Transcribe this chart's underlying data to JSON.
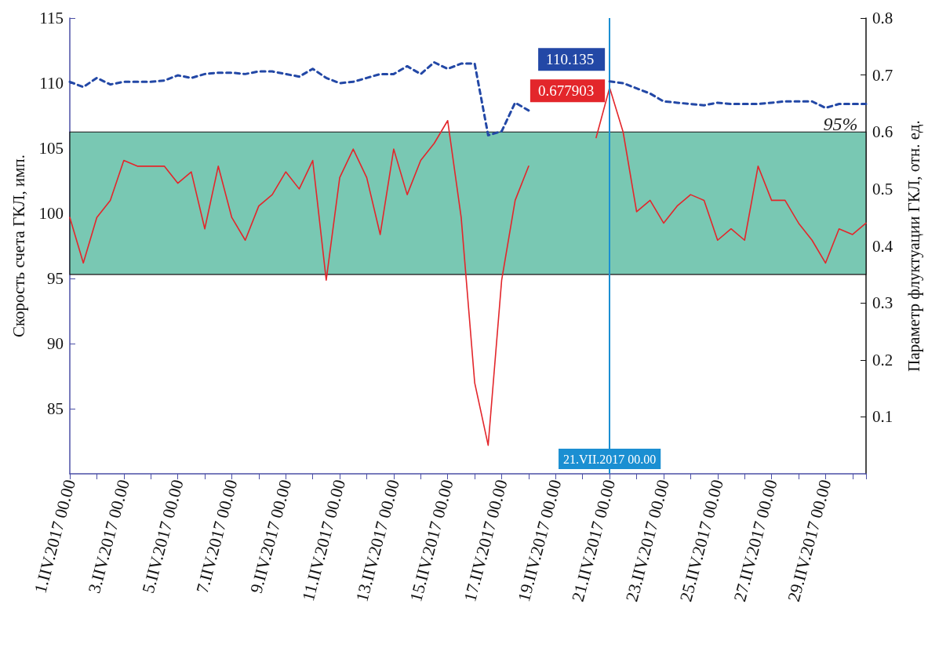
{
  "chart_data": {
    "type": "line",
    "ylabel": "Скорость счета ГКЛ, имп.",
    "y2label": "Параметр флуктуации ГКЛ, отн. ед.",
    "categories": [
      "1.IIV.2017 00.00",
      null,
      null,
      null,
      "3.IIV.2017 00.00",
      null,
      null,
      null,
      "5.IIV.2017 00.00",
      null,
      null,
      null,
      "7.IIV.2017 00.00",
      null,
      null,
      null,
      "9.IIV.2017 00.00",
      null,
      null,
      null,
      "11.IIV.2017 00.00",
      null,
      null,
      null,
      "13.IIV.2017 00.00",
      null,
      null,
      null,
      "15.IIV.2017 00.00",
      null,
      null,
      null,
      "17.IIV.2017 00.00",
      null,
      null,
      null,
      "19.IIV.2017 00.00",
      null,
      null,
      null,
      "21.IIV.2017 00.00",
      null,
      null,
      null,
      "23.IIV.2017 00.00",
      null,
      null,
      null,
      "25.IIV.2017 00.00",
      null,
      null,
      null,
      "27.IIV.2017 00.00",
      null,
      null,
      null,
      "29.IIV.2017 00.00",
      null,
      null,
      null
    ],
    "series": [
      {
        "color": "#2348a6",
        "line_style": "dashed",
        "values": [
          110.1,
          109.7,
          110.4,
          109.9,
          110.1,
          110.1,
          110.1,
          110.2,
          110.6,
          110.4,
          110.7,
          110.8,
          110.8,
          110.7,
          110.9,
          110.9,
          110.7,
          110.5,
          111.1,
          110.4,
          110.0,
          110.1,
          110.4,
          110.7,
          110.7,
          111.3,
          110.7,
          111.6,
          111.1,
          111.5,
          111.5,
          106.0,
          106.3,
          108.5,
          107.9,
          null,
          null,
          null,
          null,
          null,
          110.135,
          110.0,
          109.6,
          109.2,
          108.6,
          108.5,
          108.4,
          108.3,
          108.5,
          108.4,
          108.4,
          108.4,
          108.5,
          108.6,
          108.6,
          108.6,
          108.1,
          108.4,
          108.4,
          108.4
        ],
        "value_labels": [
          null,
          null,
          null,
          null,
          null,
          null,
          null,
          null,
          null,
          null,
          null,
          null,
          null,
          null,
          null,
          null,
          null,
          null,
          null,
          null,
          null,
          null,
          null,
          null,
          null,
          null,
          null,
          null,
          null,
          null,
          null,
          null,
          null,
          null,
          null,
          null,
          null,
          null,
          null,
          null,
          "110.135",
          null,
          null,
          null,
          null,
          null,
          null,
          null,
          null,
          null,
          null,
          null,
          null,
          null,
          null,
          null,
          null,
          null,
          null,
          null
        ]
      },
      {
        "color": "#e3262b",
        "line_style": "solid",
        "axis": "y2",
        "values": [
          0.45,
          0.37,
          0.45,
          0.48,
          0.55,
          0.54,
          0.54,
          0.54,
          0.51,
          0.53,
          0.43,
          0.54,
          0.45,
          0.41,
          0.47,
          0.49,
          0.53,
          0.5,
          0.55,
          0.34,
          0.52,
          0.57,
          0.52,
          0.42,
          0.57,
          0.49,
          0.55,
          0.58,
          0.62,
          0.45,
          0.16,
          0.05,
          0.34,
          0.48,
          0.54,
          null,
          null,
          null,
          null,
          0.59,
          0.677903,
          0.6,
          0.46,
          0.48,
          0.44,
          0.47,
          0.49,
          0.48,
          0.41,
          0.43,
          0.41,
          0.54,
          0.48,
          0.48,
          0.44,
          0.41,
          0.37,
          0.43,
          0.42,
          0.44
        ],
        "value_labels": [
          null,
          null,
          null,
          null,
          null,
          null,
          null,
          null,
          null,
          null,
          null,
          null,
          null,
          null,
          null,
          null,
          null,
          null,
          null,
          null,
          null,
          null,
          null,
          null,
          null,
          null,
          null,
          null,
          null,
          null,
          null,
          null,
          null,
          null,
          null,
          null,
          null,
          null,
          null,
          null,
          "0.677903",
          null,
          null,
          null,
          null,
          null,
          null,
          null,
          null,
          null,
          null,
          null,
          null,
          null,
          null,
          null,
          null,
          null,
          null,
          null
        ]
      }
    ],
    "ylim": [
      80,
      115
    ],
    "yticks": [
      85,
      90,
      95,
      100,
      105,
      110,
      115
    ],
    "y2lim": [
      0,
      0.8
    ],
    "y2ticks": [
      0.1,
      0.2,
      0.3,
      0.4,
      0.5,
      0.6,
      0.7,
      0.8
    ],
    "bands": [
      {
        "axis": "y2",
        "from": 0.35,
        "to": 0.6,
        "label": "95%",
        "color": "#79c8b3"
      }
    ],
    "ref_lines": [
      {
        "axis": "x",
        "value": "21.IIV.2017 00.00",
        "label": "21.VII.2017 00.00",
        "color": "#1b8fd2"
      }
    ],
    "marker": "none",
    "grid": false
  }
}
